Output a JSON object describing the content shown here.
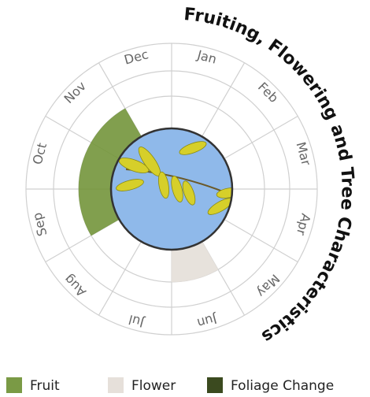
{
  "chart_data": {
    "type": "radial",
    "title": "Fruiting, Flowering and Tree Characteristics",
    "categories": [
      "Jan",
      "Feb",
      "Mar",
      "Apr",
      "May",
      "Jun",
      "Jul",
      "Aug",
      "Sep",
      "Oct",
      "Nov",
      "Dec"
    ],
    "series": [
      {
        "name": "Fruit",
        "color": "#7a9a45",
        "values": [
          0,
          0,
          0,
          0,
          0,
          0,
          0,
          0,
          1,
          1,
          1,
          0
        ]
      },
      {
        "name": "Flower",
        "color": "#e6e0da",
        "values": [
          0,
          0,
          0,
          0,
          0,
          1,
          0,
          0,
          0,
          0,
          0,
          0
        ]
      },
      {
        "name": "Foliage Change",
        "color": "#3b4a1f",
        "values": [
          0,
          0,
          0,
          0,
          0,
          0,
          0,
          0,
          0,
          0,
          0,
          0
        ]
      }
    ]
  }
}
